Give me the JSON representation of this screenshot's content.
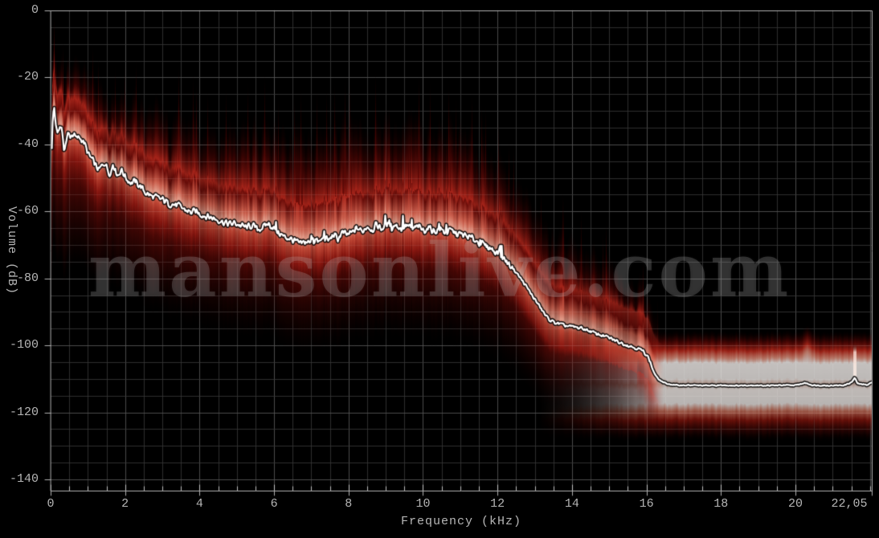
{
  "app": {
    "name": "audio-spectral-analysis-view"
  },
  "watermark": {
    "text": "mansonlive.com"
  },
  "axes": {
    "y": {
      "title": "Volume (dB)",
      "ticks": [
        {
          "label": "0",
          "value": 0
        },
        {
          "label": "-20",
          "value": -20
        },
        {
          "label": "-40",
          "value": -40
        },
        {
          "label": "-60",
          "value": -60
        },
        {
          "label": "-80",
          "value": -80
        },
        {
          "label": "-100",
          "value": -100
        },
        {
          "label": "-120",
          "value": -120
        },
        {
          "label": "-140",
          "value": -140
        }
      ]
    },
    "x": {
      "title": "Frequency (kHz)",
      "ticks": [
        {
          "label": "0",
          "value": 0
        },
        {
          "label": "2",
          "value": 2
        },
        {
          "label": "4",
          "value": 4
        },
        {
          "label": "6",
          "value": 6
        },
        {
          "label": "8",
          "value": 8
        },
        {
          "label": "10",
          "value": 10
        },
        {
          "label": "12",
          "value": 12
        },
        {
          "label": "14",
          "value": 14
        },
        {
          "label": "16",
          "value": 16
        },
        {
          "label": "18",
          "value": 18
        },
        {
          "label": "20",
          "value": 20
        },
        {
          "label": "22,05",
          "value": 22.05
        }
      ]
    }
  },
  "colors": {
    "background": "#000000",
    "grid_minor": "#262626",
    "grid_major": "#404040",
    "axis": "#b0b0b0",
    "tick_label": "#b6b6b6",
    "curve": "#ffffff",
    "spectrum_bright": "#c22418",
    "spectrum_core": "#f3a894",
    "spectrum_deep": "#6e0805"
  },
  "chart_data": {
    "type": "area",
    "title": "",
    "xlabel": "Frequency (kHz)",
    "ylabel": "Volume (dB)",
    "xlim": [
      0,
      22.05
    ],
    "ylim": [
      -140,
      0
    ],
    "grid": {
      "minor_x_khz": 0.5,
      "major_x_khz": 2,
      "minor_y_db": 5,
      "major_y_db": 20,
      "visible": true
    },
    "legend": "none",
    "features": {
      "lowpass_cutoff_khz": 16.0,
      "flat_noise_floor_db": -111.8,
      "noise_floor_spikes_khz": [
        20.3,
        21.58
      ],
      "noise_floor_band": {
        "start_khz": 13.1,
        "bright_bands_db": [
          [
            -105.5,
            -110.0
          ],
          [
            -113.0,
            -117.4
          ]
        ],
        "extent_db": [
          -99,
          -126
        ]
      }
    },
    "envelope_db_above_below": [
      [
        0.0,
        20,
        34,
        1.0
      ],
      [
        0.3,
        22,
        34,
        1.0
      ],
      [
        1.0,
        24,
        30,
        0.97
      ],
      [
        2.0,
        26,
        28,
        0.93
      ],
      [
        3.5,
        28,
        27,
        0.92
      ],
      [
        5.0,
        30,
        26,
        0.92
      ],
      [
        6.0,
        32,
        26,
        0.95
      ],
      [
        7.5,
        33,
        26,
        0.97
      ],
      [
        9.0,
        33,
        26,
        1.0
      ],
      [
        10.5,
        32,
        26,
        0.97
      ],
      [
        12.0,
        30,
        25,
        0.92
      ],
      [
        13.0,
        28,
        22,
        0.85
      ],
      [
        14.0,
        26,
        20,
        0.8
      ],
      [
        15.0,
        24,
        18,
        0.8
      ],
      [
        15.9,
        21,
        15,
        0.85
      ],
      [
        16.4,
        18,
        12,
        0.85
      ]
    ],
    "series": [
      {
        "name": "average_spectrum_dB",
        "points": [
          [
            0.0,
            -48.5
          ],
          [
            0.05,
            -31
          ],
          [
            0.08,
            -28.8
          ],
          [
            0.12,
            -33.5
          ],
          [
            0.17,
            -36.5
          ],
          [
            0.22,
            -35
          ],
          [
            0.28,
            -34.5
          ],
          [
            0.34,
            -41.5
          ],
          [
            0.4,
            -39.5
          ],
          [
            0.46,
            -36.8
          ],
          [
            0.52,
            -37.5
          ],
          [
            0.6,
            -36.9
          ],
          [
            0.68,
            -38.3
          ],
          [
            0.76,
            -37.8
          ],
          [
            0.84,
            -38.8
          ],
          [
            0.92,
            -40.3
          ],
          [
            1.0,
            -43
          ],
          [
            1.1,
            -44.5
          ],
          [
            1.2,
            -46.3
          ],
          [
            1.28,
            -47.8
          ],
          [
            1.36,
            -46.5
          ],
          [
            1.44,
            -45.3
          ],
          [
            1.52,
            -47.3
          ],
          [
            1.6,
            -49
          ],
          [
            1.66,
            -45.5
          ],
          [
            1.72,
            -47.5
          ],
          [
            1.8,
            -49.3
          ],
          [
            1.88,
            -47.5
          ],
          [
            1.96,
            -49
          ],
          [
            2.05,
            -50.5
          ],
          [
            2.15,
            -51.5
          ],
          [
            2.25,
            -51
          ],
          [
            2.4,
            -52.5
          ],
          [
            2.55,
            -54.5
          ],
          [
            2.7,
            -55.5
          ],
          [
            2.85,
            -56
          ],
          [
            3.0,
            -56.5
          ],
          [
            3.15,
            -57.5
          ],
          [
            3.3,
            -58
          ],
          [
            3.45,
            -58.5
          ],
          [
            3.6,
            -59.5
          ],
          [
            3.75,
            -60.3
          ],
          [
            3.9,
            -60
          ],
          [
            4.05,
            -61
          ],
          [
            4.2,
            -61.5
          ],
          [
            4.35,
            -62
          ],
          [
            4.5,
            -62.5
          ],
          [
            4.65,
            -63.3
          ],
          [
            4.8,
            -63.8
          ],
          [
            4.95,
            -63.5
          ],
          [
            5.1,
            -64.3
          ],
          [
            5.25,
            -64.8
          ],
          [
            5.4,
            -64.2
          ],
          [
            5.55,
            -65.3
          ],
          [
            5.7,
            -64.8
          ],
          [
            5.82,
            -63.6
          ],
          [
            5.95,
            -64.6
          ],
          [
            6.1,
            -66.3
          ],
          [
            6.25,
            -67.6
          ],
          [
            6.4,
            -68
          ],
          [
            6.55,
            -68.9
          ],
          [
            6.7,
            -69.8
          ],
          [
            6.85,
            -69
          ],
          [
            7.0,
            -69.6
          ],
          [
            7.1,
            -68.4
          ],
          [
            7.2,
            -69.3
          ],
          [
            7.32,
            -67.8
          ],
          [
            7.45,
            -68.7
          ],
          [
            7.58,
            -67
          ],
          [
            7.7,
            -68.2
          ],
          [
            7.82,
            -66.4
          ],
          [
            7.95,
            -67
          ],
          [
            8.1,
            -66.3
          ],
          [
            8.22,
            -64.9
          ],
          [
            8.35,
            -66
          ],
          [
            8.5,
            -64.3
          ],
          [
            8.62,
            -65.5
          ],
          [
            8.75,
            -64
          ],
          [
            8.88,
            -65.2
          ],
          [
            9.0,
            -63.7
          ],
          [
            9.12,
            -65
          ],
          [
            9.25,
            -63.9
          ],
          [
            9.4,
            -65.2
          ],
          [
            9.55,
            -64.2
          ],
          [
            9.7,
            -65.4
          ],
          [
            9.85,
            -64.5
          ],
          [
            10.0,
            -65.7
          ],
          [
            10.15,
            -64.8
          ],
          [
            10.3,
            -66
          ],
          [
            10.45,
            -65.3
          ],
          [
            10.6,
            -66.3
          ],
          [
            10.75,
            -65.7
          ],
          [
            10.9,
            -66.7
          ],
          [
            11.05,
            -67
          ],
          [
            11.2,
            -67.6
          ],
          [
            11.35,
            -68.3
          ],
          [
            11.5,
            -69.3
          ],
          [
            11.65,
            -70.1
          ],
          [
            11.8,
            -71
          ],
          [
            11.95,
            -72
          ],
          [
            12.1,
            -73.5
          ],
          [
            12.25,
            -75.1
          ],
          [
            12.4,
            -76.9
          ],
          [
            12.55,
            -79.1
          ],
          [
            12.7,
            -81.4
          ],
          [
            12.85,
            -83.9
          ],
          [
            13.0,
            -86.4
          ],
          [
            13.15,
            -88.9
          ],
          [
            13.3,
            -91.4
          ],
          [
            13.45,
            -92.9
          ],
          [
            13.6,
            -93.4
          ],
          [
            13.75,
            -94
          ],
          [
            13.9,
            -94.3
          ],
          [
            14.05,
            -94.5
          ],
          [
            14.2,
            -94.8
          ],
          [
            14.35,
            -95.2
          ],
          [
            14.5,
            -95.9
          ],
          [
            14.65,
            -96.5
          ],
          [
            14.8,
            -97
          ],
          [
            14.95,
            -97.6
          ],
          [
            15.1,
            -98.3
          ],
          [
            15.25,
            -99
          ],
          [
            15.4,
            -99.6
          ],
          [
            15.55,
            -100.2
          ],
          [
            15.7,
            -100.7
          ],
          [
            15.85,
            -101.4
          ],
          [
            16.0,
            -102.7
          ],
          [
            16.1,
            -105.3
          ],
          [
            16.2,
            -108.3
          ],
          [
            16.3,
            -110
          ],
          [
            16.45,
            -111.1
          ],
          [
            16.6,
            -111.6
          ],
          [
            16.8,
            -111.9
          ],
          [
            17.2,
            -111.9
          ],
          [
            17.6,
            -112
          ],
          [
            18.0,
            -111.9
          ],
          [
            18.4,
            -112
          ],
          [
            18.8,
            -111.9
          ],
          [
            19.2,
            -112
          ],
          [
            19.6,
            -111.9
          ],
          [
            20.0,
            -111.9
          ],
          [
            20.25,
            -111.2
          ],
          [
            20.45,
            -111.9
          ],
          [
            20.9,
            -112
          ],
          [
            21.3,
            -111.9
          ],
          [
            21.5,
            -111
          ],
          [
            21.58,
            -109.7
          ],
          [
            21.66,
            -111.4
          ],
          [
            21.9,
            -111.8
          ],
          [
            22.05,
            -111
          ]
        ]
      }
    ]
  }
}
